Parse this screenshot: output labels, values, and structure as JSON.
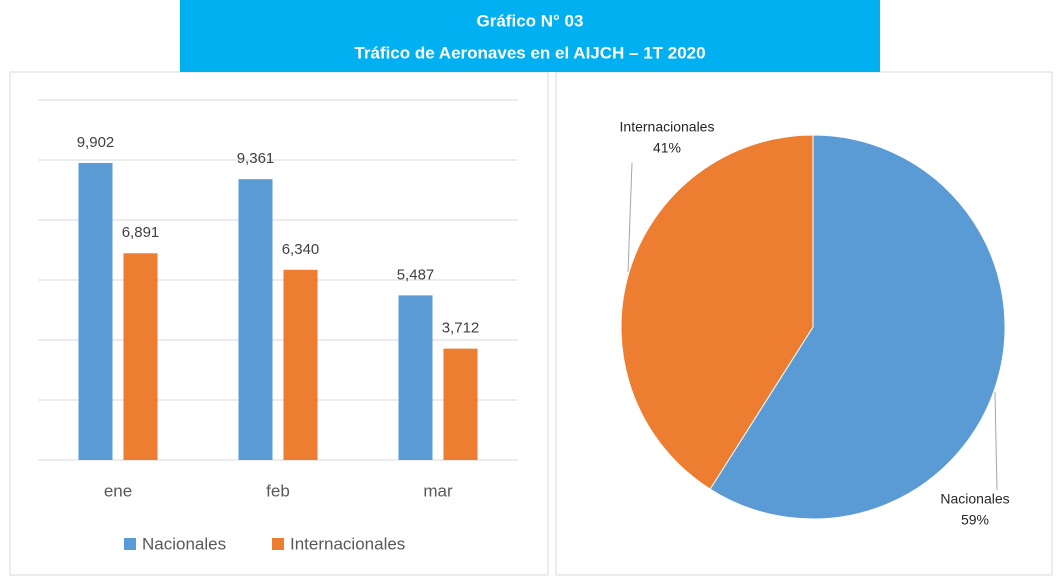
{
  "title": "Gráfico N° 03",
  "subtitle": "Tráfico de Aeronaves en el AIJCH – 1T 2020",
  "chart_data": [
    {
      "type": "bar",
      "categories": [
        "ene",
        "feb",
        "mar"
      ],
      "series": [
        {
          "name": "Nacionales",
          "color": "#5b9bd5",
          "values": [
            9902,
            9361,
            5487
          ],
          "value_labels": [
            "9,902",
            "9,361",
            "5,487"
          ]
        },
        {
          "name": "Internacionales",
          "color": "#ed7d31",
          "values": [
            6891,
            6340,
            3712
          ],
          "value_labels": [
            "6,891",
            "6,340",
            "3,712"
          ]
        }
      ],
      "ylim": [
        0,
        12000
      ],
      "yticks": [
        0,
        2000,
        4000,
        6000,
        8000,
        10000,
        12000
      ],
      "grid": true,
      "legend": "bottom"
    },
    {
      "type": "pie",
      "categories": [
        "Nacionales",
        "Internacionales"
      ],
      "values": [
        59,
        41
      ],
      "value_labels": [
        "59%",
        "41%"
      ],
      "colors": [
        "#5b9bd5",
        "#ed7d31"
      ]
    }
  ]
}
